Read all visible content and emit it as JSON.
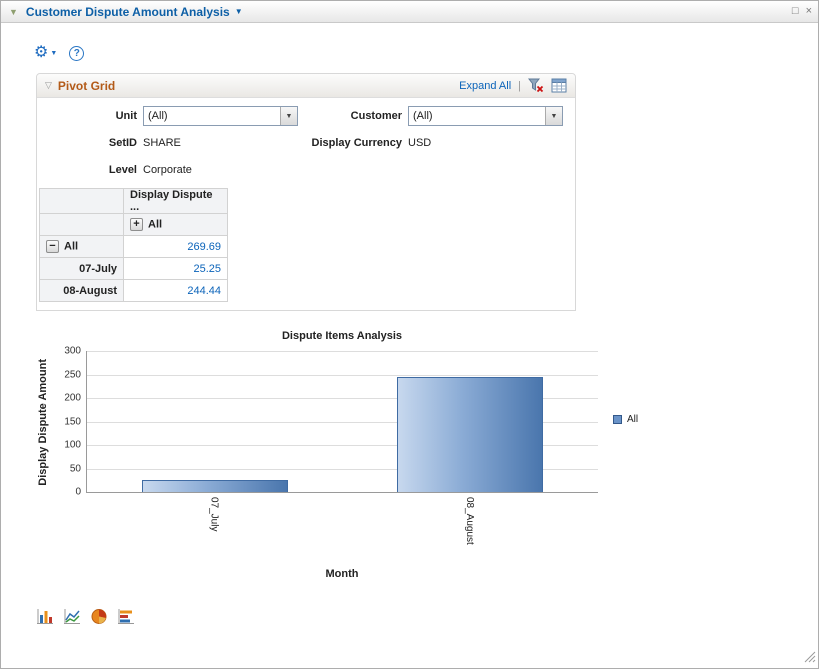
{
  "window": {
    "collapse_icon": "▼",
    "title": "Customer Dispute Amount Analysis",
    "menu_caret": "▼",
    "maximize_icon": "□",
    "close_icon": "×"
  },
  "toolbar": {
    "gear_icon": "⚙",
    "gear_caret": "▼",
    "help_icon": "?"
  },
  "pivot_grid": {
    "header": {
      "toggle_icon": "▽",
      "title": "Pivot Grid",
      "expand_all": "Expand All",
      "separator": "|"
    },
    "prompts": {
      "unit_label": "Unit",
      "unit_value": "(All)",
      "customer_label": "Customer",
      "customer_value": "(All)",
      "setid_label": "SetID",
      "setid_value": "SHARE",
      "currency_label": "Display Currency",
      "currency_value": "USD",
      "level_label": "Level",
      "level_value": "Corporate"
    },
    "table": {
      "column_header": "Display Dispute ...",
      "expand_button": "+",
      "collapse_button": "−",
      "column_sub_header": "All",
      "rows": [
        {
          "label": "All",
          "value": "269.69"
        },
        {
          "label": "07-July",
          "value": "25.25"
        },
        {
          "label": "08-August",
          "value": "244.44"
        }
      ]
    }
  },
  "chart_data": {
    "type": "bar",
    "title": "Dispute Items Analysis",
    "categories": [
      "07_July",
      "08_August"
    ],
    "series": [
      {
        "name": "All",
        "values": [
          25.25,
          244.44
        ]
      }
    ],
    "xlabel": "Month",
    "ylabel": "Display Dispute Amount",
    "ylim": [
      0,
      300
    ],
    "yticks": [
      0,
      50,
      100,
      150,
      200,
      250,
      300
    ],
    "legend_position": "right",
    "grid": true,
    "bar_color": "#6a93c8",
    "bar_border_color": "#3f6ba3"
  },
  "chart_toolbar": {
    "icons": [
      "vertical-bar-chart",
      "line-chart",
      "pie-chart",
      "horizontal-bar-chart"
    ]
  },
  "colors": {
    "link": "#0c64ba",
    "title_blue": "#0d5fa6",
    "section_orange": "#b35a18"
  }
}
